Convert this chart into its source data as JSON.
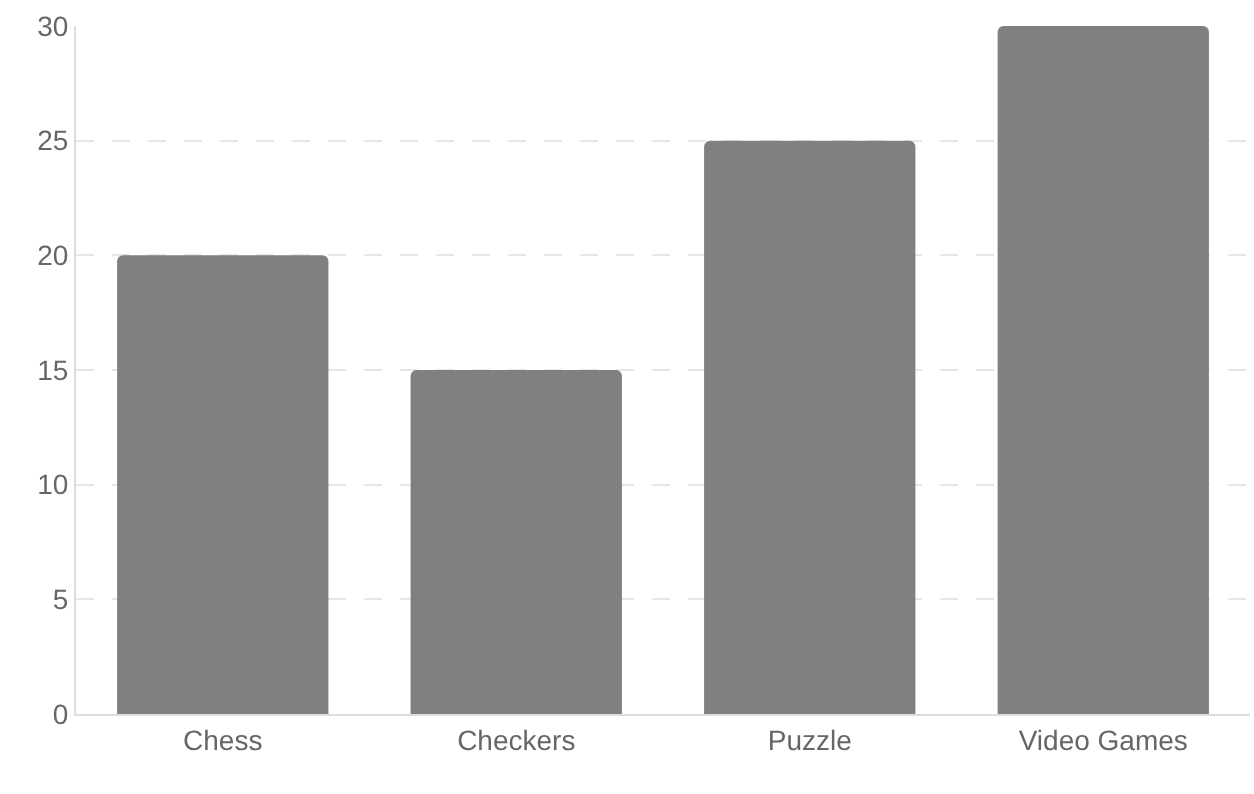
{
  "chart_data": {
    "type": "bar",
    "categories": [
      "Chess",
      "Checkers",
      "Puzzle",
      "Video Games"
    ],
    "values": [
      20,
      15,
      25,
      30
    ],
    "color": "#808080",
    "ylim": [
      0,
      30
    ],
    "yticks": [
      0,
      5,
      10,
      15,
      20,
      25,
      30
    ],
    "grid": "y"
  }
}
